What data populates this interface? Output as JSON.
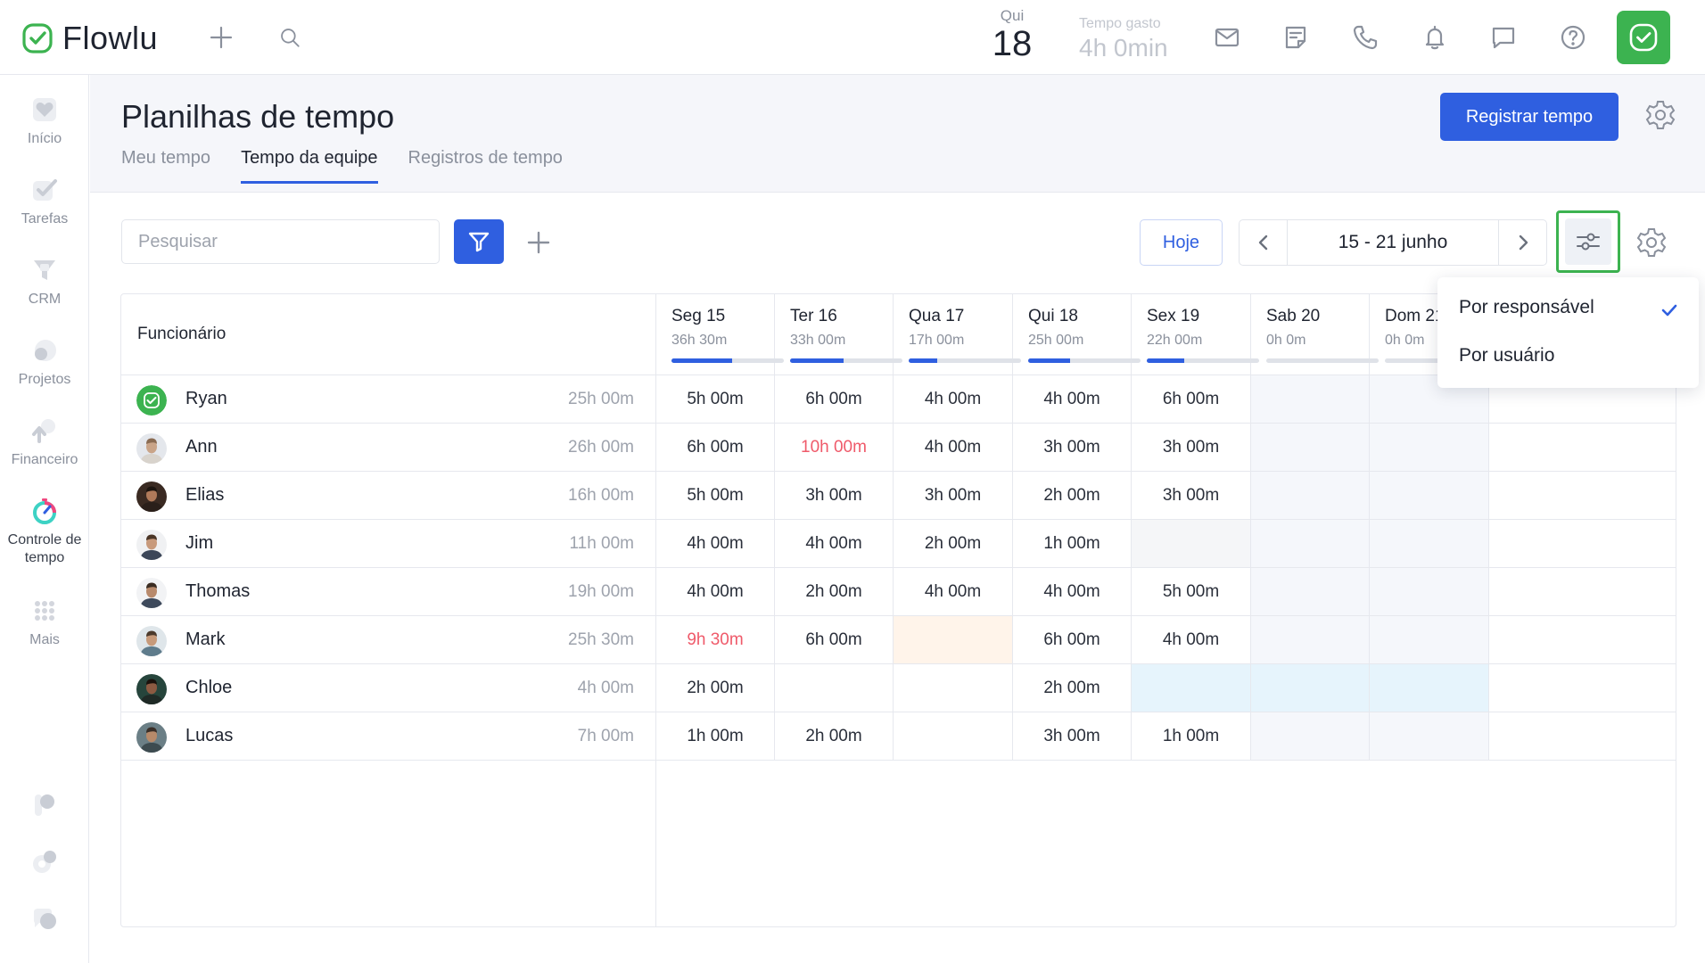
{
  "app": {
    "name": "Flowlu"
  },
  "topbar": {
    "date": {
      "weekday": "Qui",
      "day": "18"
    },
    "time_spent": {
      "label": "Tempo gasto",
      "value": "4h 0min"
    },
    "icons": [
      "plus-icon",
      "search-icon",
      "mail-icon",
      "notes-icon",
      "phone-icon",
      "bell-icon",
      "chat-icon",
      "help-icon"
    ]
  },
  "sidebar": {
    "items": [
      {
        "label": "Início",
        "icon": "heart-icon"
      },
      {
        "label": "Tarefas",
        "icon": "tasks-icon"
      },
      {
        "label": "CRM",
        "icon": "crm-icon"
      },
      {
        "label": "Projetos",
        "icon": "projects-icon"
      },
      {
        "label": "Financeiro",
        "icon": "finance-icon"
      },
      {
        "label": "Controle de tempo",
        "icon": "time-tracking-icon"
      },
      {
        "label": "Mais",
        "icon": "grid-dots-icon"
      }
    ]
  },
  "header": {
    "title": "Planilhas de tempo",
    "tabs": [
      {
        "label": "Meu tempo",
        "active": false
      },
      {
        "label": "Tempo da equipe",
        "active": true
      },
      {
        "label": "Registros de tempo",
        "active": false
      }
    ],
    "primary_button": "Registrar tempo"
  },
  "toolbar": {
    "search_placeholder": "Pesquisar",
    "today_label": "Hoje",
    "range_label": "15 - 21 junho"
  },
  "table": {
    "name_header": "Funcionário",
    "days": [
      {
        "label": "Seg 15",
        "total": "36h 30m",
        "progress": 0.54
      },
      {
        "label": "Ter 16",
        "total": "33h 00m",
        "progress": 0.48
      },
      {
        "label": "Qua 17",
        "total": "17h 00m",
        "progress": 0.25
      },
      {
        "label": "Qui 18",
        "total": "25h 00m",
        "progress": 0.37
      },
      {
        "label": "Sex 19",
        "total": "22h 00m",
        "progress": 0.33
      },
      {
        "label": "Sab 20",
        "total": "0h 0m",
        "progress": 0
      },
      {
        "label": "Dom 21",
        "total": "0h 0m",
        "progress": 0
      }
    ],
    "rows": [
      {
        "name": "Ryan",
        "total": "25h 00m",
        "cells": [
          "5h 00m",
          "6h 00m",
          "4h 00m",
          "4h 00m",
          "6h 00m",
          "",
          ""
        ]
      },
      {
        "name": "Ann",
        "total": "26h 00m",
        "cells": [
          "6h 00m",
          "10h 00m",
          "4h 00m",
          "3h 00m",
          "3h 00m",
          "",
          ""
        ]
      },
      {
        "name": "Elias",
        "total": "16h 00m",
        "cells": [
          "5h 00m",
          "3h 00m",
          "3h 00m",
          "2h 00m",
          "3h 00m",
          "",
          ""
        ]
      },
      {
        "name": "Jim",
        "total": "11h 00m",
        "cells": [
          "4h 00m",
          "4h 00m",
          "2h 00m",
          "1h 00m",
          "",
          "",
          ""
        ]
      },
      {
        "name": "Thomas",
        "total": "19h 00m",
        "cells": [
          "4h 00m",
          "2h 00m",
          "4h 00m",
          "4h 00m",
          "5h 00m",
          "",
          ""
        ]
      },
      {
        "name": "Mark",
        "total": "25h 30m",
        "cells": [
          "9h 30m",
          "6h 00m",
          "",
          "6h 00m",
          "4h 00m",
          "",
          ""
        ]
      },
      {
        "name": "Chloe",
        "total": "4h 00m",
        "cells": [
          "2h 00m",
          "",
          "",
          "2h 00m",
          "",
          "",
          ""
        ]
      },
      {
        "name": "Lucas",
        "total": "7h 00m",
        "cells": [
          "1h 00m",
          "2h 00m",
          "",
          "3h 00m",
          "1h 00m",
          "",
          ""
        ]
      }
    ]
  },
  "dropdown": {
    "items": [
      {
        "label": "Por responsável",
        "checked": true
      },
      {
        "label": "Por usuário",
        "checked": false
      }
    ]
  },
  "colors": {
    "accent": "#2f5fe0",
    "brand_green": "#3cb350",
    "overtime_red": "#ef5a6a"
  }
}
